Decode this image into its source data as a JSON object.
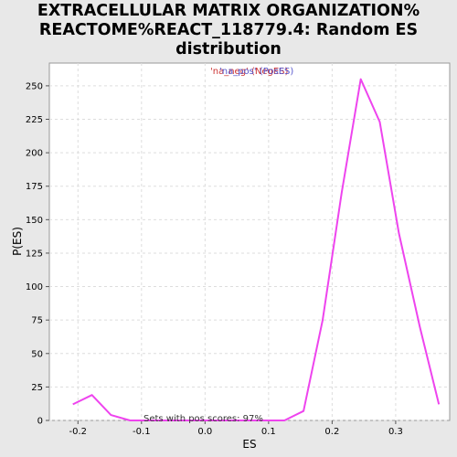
{
  "chart_data": {
    "type": "line",
    "title_lines": [
      "EXTRACELLULAR MATRIX ORGANIZATION%",
      "REACTOME%REACT_118779.4: Random ES",
      "distribution"
    ],
    "xlabel": "ES",
    "ylabel": "P(ES)",
    "xlim": [
      -0.245,
      0.385
    ],
    "ylim": [
      0,
      267
    ],
    "x_ticks": [
      -0.2,
      -0.1,
      0.0,
      0.1,
      0.2,
      0.3
    ],
    "x_tick_labels": [
      "-0.2",
      "-0.1",
      "0.0",
      "0.1",
      "0.2",
      "0.3"
    ],
    "y_ticks": [
      0,
      25,
      50,
      75,
      100,
      125,
      150,
      175,
      200,
      225,
      250
    ],
    "y_tick_labels": [
      "0",
      "25",
      "50",
      "75",
      "100",
      "125",
      "150",
      "175",
      "200",
      "225",
      "250"
    ],
    "grid": true,
    "legend": {
      "placement": "top-center",
      "entries": [
        {
          "text": "'na_neg' (NegES)",
          "color": "#cc3333"
        },
        {
          "text": "'na_pos' (PosES)",
          "color": "#5555cc"
        }
      ]
    },
    "annotation": "Sets with pos scores: 97%",
    "series": [
      {
        "color": "#ee44ee",
        "x": [
          -0.208,
          -0.178,
          -0.148,
          -0.118,
          -0.088,
          -0.058,
          -0.028,
          0.002,
          0.032,
          0.062,
          0.092,
          0.125,
          0.155,
          0.185,
          0.215,
          0.245,
          0.275,
          0.305,
          0.338,
          0.368
        ],
        "y": [
          12,
          19,
          4,
          0,
          0,
          0,
          0,
          0,
          0,
          0,
          0,
          0,
          7,
          75,
          170,
          255,
          223,
          140,
          70,
          12
        ]
      }
    ]
  }
}
